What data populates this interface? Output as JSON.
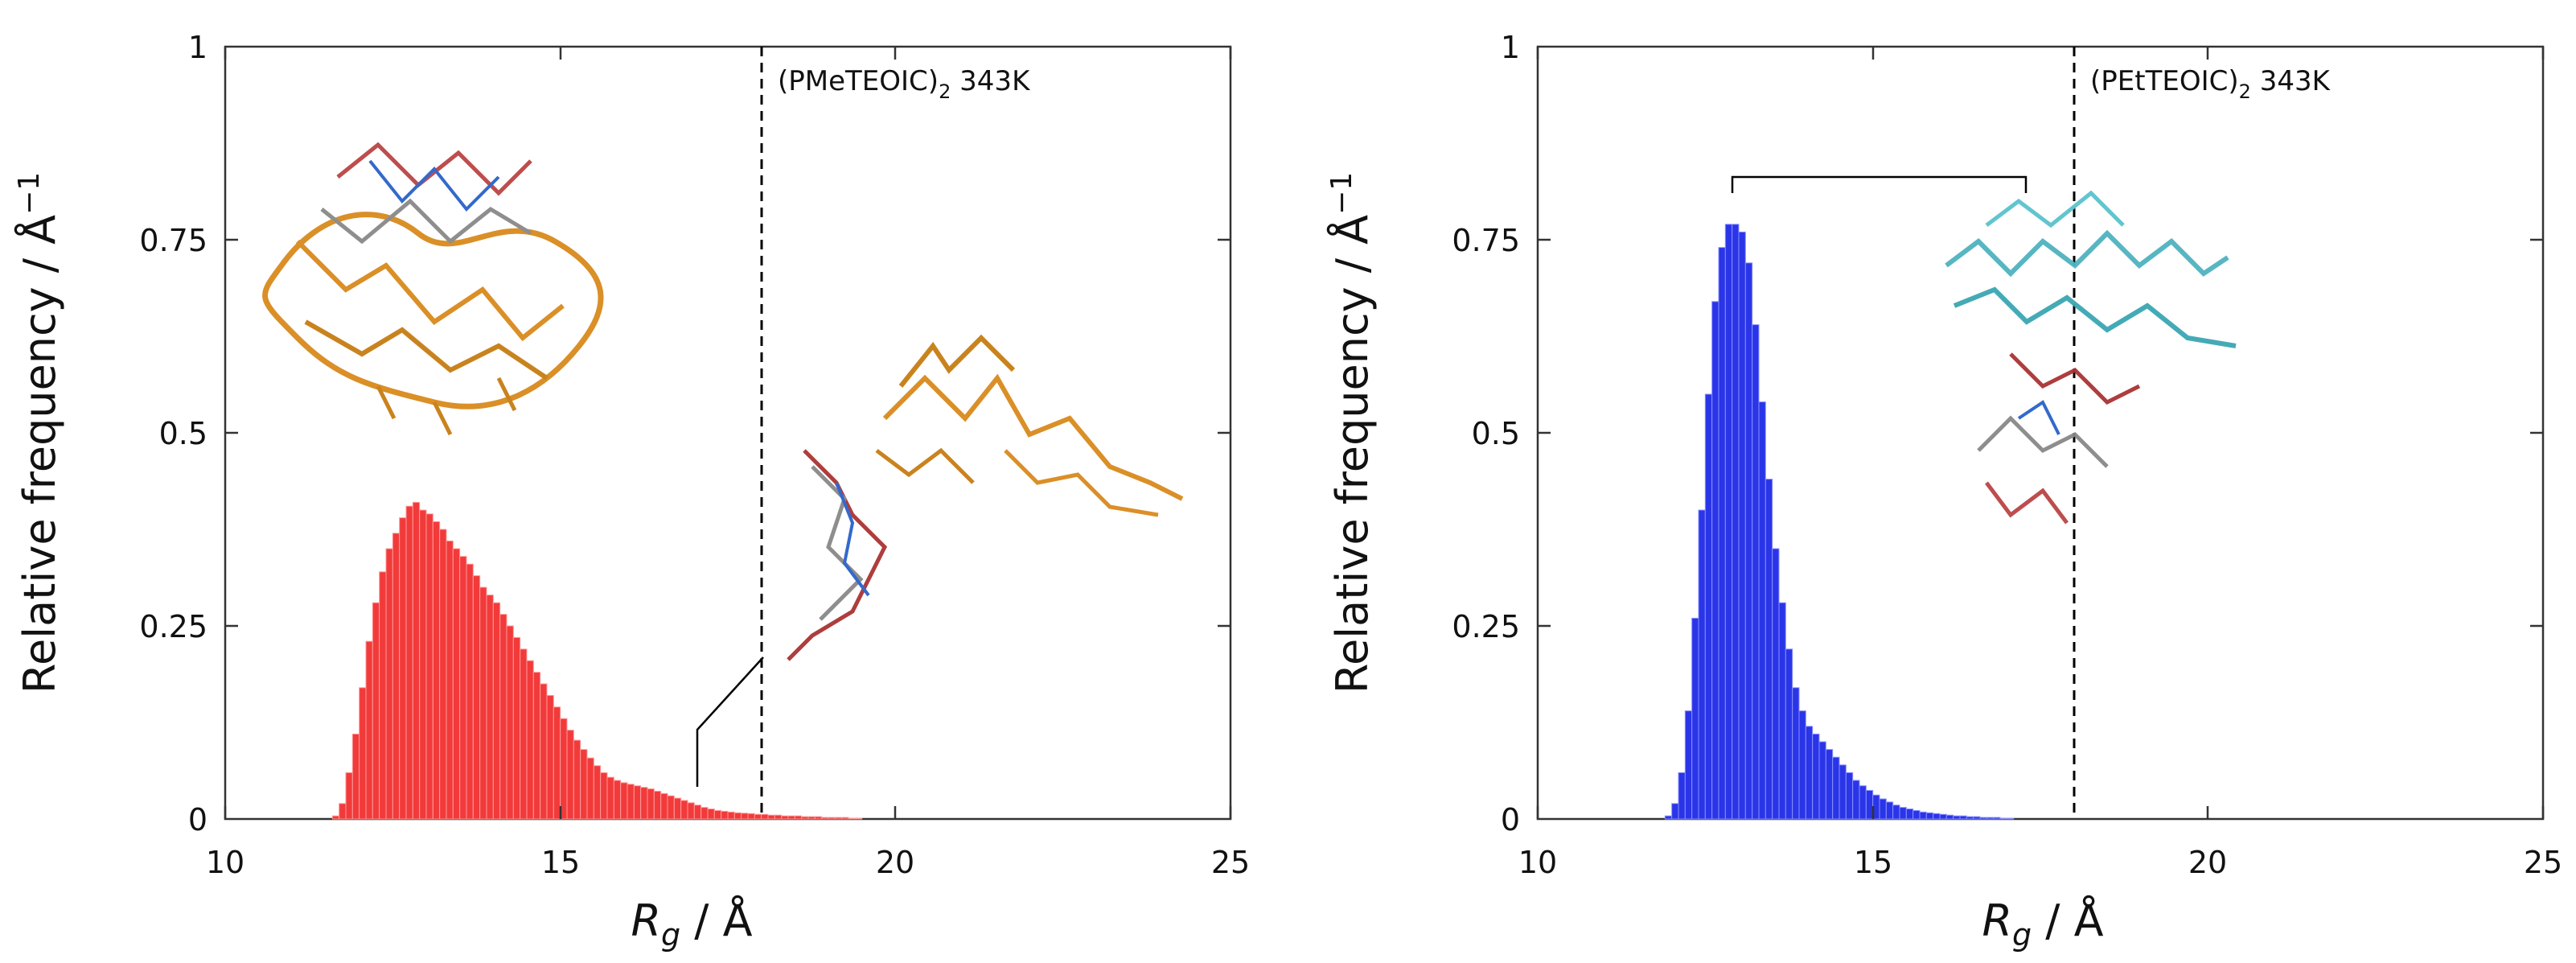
{
  "chart_data": [
    {
      "type": "bar",
      "title": "",
      "annotation": {
        "prefix": "(PMeTEOIC)",
        "subscript": "2",
        "suffix": " 343K"
      },
      "xlabel": {
        "symbol": "R",
        "subscript": "g",
        "unit": " / Å"
      },
      "ylabel": {
        "text": "Relative frequency / Å",
        "superscript": "−1"
      },
      "xlim": [
        10,
        25
      ],
      "ylim": [
        0,
        1
      ],
      "xticks": [
        "10",
        "15",
        "20",
        "25"
      ],
      "yticks": [
        "0",
        "0.25",
        "0.5",
        "0.75",
        "1"
      ],
      "dashed_line_x": 18,
      "bar_color": "#f23a3a",
      "bar_edge_color": "#ff9a9a",
      "bin_width": 0.1,
      "x": [
        11.6,
        11.7,
        11.8,
        11.9,
        12.0,
        12.1,
        12.2,
        12.3,
        12.4,
        12.5,
        12.6,
        12.7,
        12.8,
        12.9,
        13.0,
        13.1,
        13.2,
        13.3,
        13.4,
        13.5,
        13.6,
        13.7,
        13.8,
        13.9,
        14.0,
        14.1,
        14.2,
        14.3,
        14.4,
        14.5,
        14.6,
        14.7,
        14.8,
        14.9,
        15.0,
        15.1,
        15.2,
        15.3,
        15.4,
        15.5,
        15.6,
        15.7,
        15.8,
        15.9,
        16.0,
        16.1,
        16.2,
        16.3,
        16.4,
        16.5,
        16.6,
        16.7,
        16.8,
        16.9,
        17.0,
        17.1,
        17.2,
        17.3,
        17.4,
        17.5,
        17.6,
        17.7,
        17.8,
        17.9,
        18.0,
        18.1,
        18.2,
        18.3,
        18.4,
        18.5,
        18.6,
        18.7,
        18.8,
        18.9,
        19.0,
        19.1,
        19.2,
        19.3,
        19.4
      ],
      "values": [
        0.004,
        0.02,
        0.06,
        0.11,
        0.17,
        0.23,
        0.28,
        0.32,
        0.35,
        0.37,
        0.39,
        0.405,
        0.41,
        0.4,
        0.395,
        0.385,
        0.375,
        0.36,
        0.35,
        0.34,
        0.33,
        0.315,
        0.3,
        0.29,
        0.28,
        0.265,
        0.25,
        0.235,
        0.22,
        0.205,
        0.19,
        0.175,
        0.16,
        0.145,
        0.13,
        0.115,
        0.102,
        0.09,
        0.079,
        0.069,
        0.06,
        0.054,
        0.05,
        0.047,
        0.045,
        0.043,
        0.041,
        0.039,
        0.036,
        0.033,
        0.03,
        0.027,
        0.024,
        0.021,
        0.018,
        0.015,
        0.013,
        0.011,
        0.01,
        0.009,
        0.008,
        0.0075,
        0.007,
        0.006,
        0.006,
        0.005,
        0.005,
        0.004,
        0.004,
        0.004,
        0.003,
        0.003,
        0.003,
        0.002,
        0.002,
        0.002,
        0.002,
        0.001,
        0.001
      ]
    },
    {
      "type": "bar",
      "title": "",
      "annotation": {
        "prefix": "(PEtTEOIC)",
        "subscript": "2",
        "suffix": " 343K"
      },
      "xlabel": {
        "symbol": "R",
        "subscript": "g",
        "unit": " / Å"
      },
      "ylabel": {
        "text": "Relative frequency / Å",
        "superscript": "−1"
      },
      "xlim": [
        10,
        25
      ],
      "ylim": [
        0,
        1
      ],
      "xticks": [
        "10",
        "15",
        "20",
        "25"
      ],
      "yticks": [
        "0",
        "0.25",
        "0.5",
        "0.75",
        "1"
      ],
      "dashed_line_x": 18,
      "bar_color": "#2a35e8",
      "bar_edge_color": "#8a90ff",
      "bin_width": 0.1,
      "x": [
        11.9,
        12.0,
        12.1,
        12.2,
        12.3,
        12.4,
        12.5,
        12.6,
        12.7,
        12.8,
        12.9,
        13.0,
        13.1,
        13.2,
        13.3,
        13.4,
        13.5,
        13.6,
        13.7,
        13.8,
        13.9,
        14.0,
        14.1,
        14.2,
        14.3,
        14.4,
        14.5,
        14.6,
        14.7,
        14.8,
        14.9,
        15.0,
        15.1,
        15.2,
        15.3,
        15.4,
        15.5,
        15.6,
        15.7,
        15.8,
        15.9,
        16.0,
        16.1,
        16.2,
        16.3,
        16.4,
        16.5,
        16.6,
        16.7,
        16.8,
        16.9,
        17.0
      ],
      "values": [
        0.004,
        0.02,
        0.06,
        0.14,
        0.26,
        0.4,
        0.55,
        0.67,
        0.74,
        0.77,
        0.77,
        0.76,
        0.72,
        0.64,
        0.54,
        0.44,
        0.35,
        0.28,
        0.22,
        0.17,
        0.14,
        0.12,
        0.11,
        0.1,
        0.09,
        0.08,
        0.07,
        0.06,
        0.05,
        0.043,
        0.037,
        0.031,
        0.026,
        0.022,
        0.018,
        0.015,
        0.013,
        0.011,
        0.009,
        0.008,
        0.007,
        0.006,
        0.005,
        0.004,
        0.004,
        0.003,
        0.003,
        0.002,
        0.002,
        0.002,
        0.001,
        0.001
      ]
    }
  ]
}
